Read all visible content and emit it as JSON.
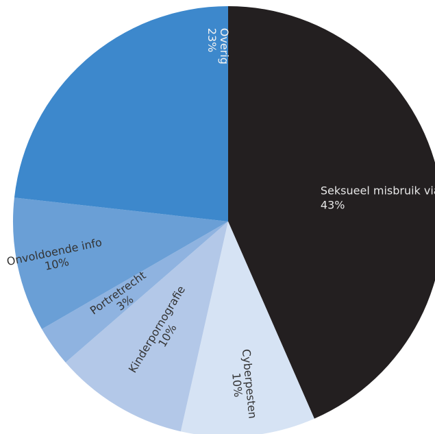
{
  "chart_data": {
    "type": "pie",
    "start_angle_deg": 0,
    "direction": "clockwise",
    "slices": [
      {
        "label": "Seksueel misbruik via chat",
        "percent_label": "43%",
        "value": 43,
        "color": "#231f20",
        "text_color": "#e6e6e6",
        "label_style": "horizontal"
      },
      {
        "label": "Cyberpesten",
        "percent_label": "10%",
        "value": 10,
        "color": "#d6e3f4",
        "text_color": "#333333",
        "label_style": "radial"
      },
      {
        "label": "Kinderpornografie",
        "percent_label": "10%",
        "value": 10,
        "color": "#b3c8e8",
        "text_color": "#333333",
        "label_style": "radial"
      },
      {
        "label": "Portretrecht",
        "percent_label": "3%",
        "value": 3,
        "color": "#8fb3e0",
        "text_color": "#333333",
        "label_style": "radial"
      },
      {
        "label": "Onvoldoende info",
        "percent_label": "10%",
        "value": 10,
        "color": "#6a9fd6",
        "text_color": "#333333",
        "label_style": "radial"
      },
      {
        "label": "Overig",
        "percent_label": "23%",
        "value": 23,
        "color": "#3d88cc",
        "text_color": "#f2f2f2",
        "label_style": "radial"
      }
    ]
  }
}
